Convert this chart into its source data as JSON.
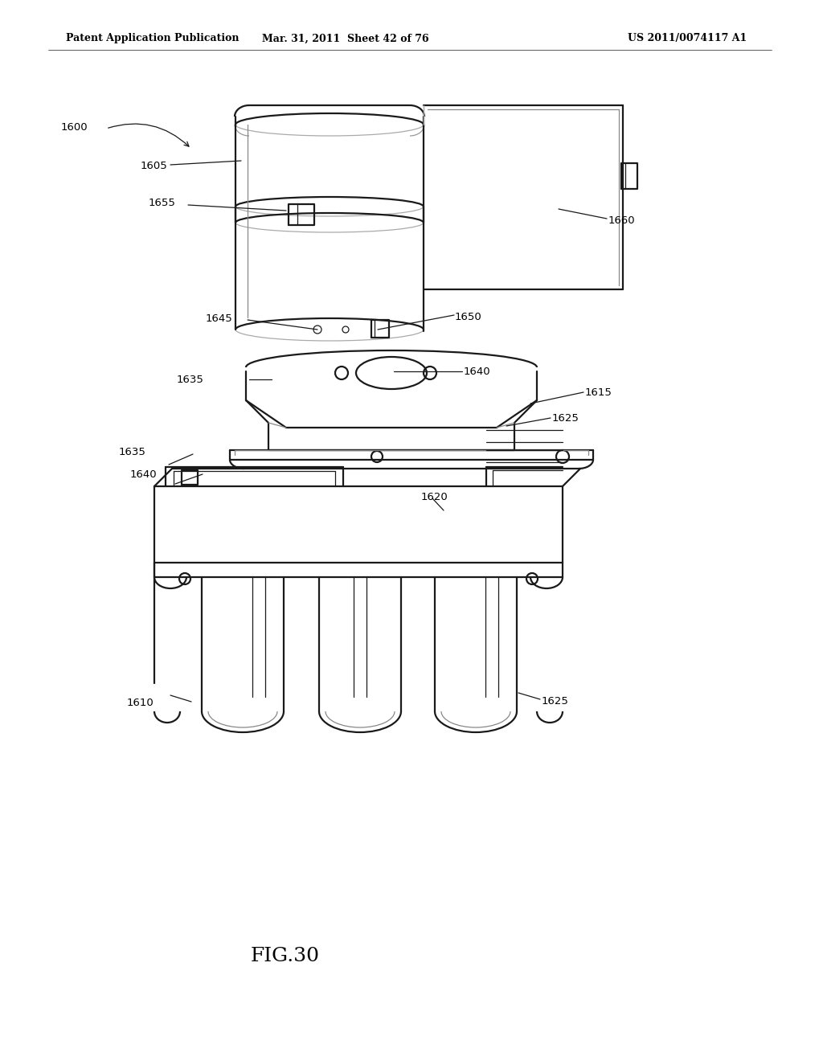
{
  "bg_color": "#ffffff",
  "lc": "#1a1a1a",
  "header_left": "Patent Application Publication",
  "header_mid": "Mar. 31, 2011  Sheet 42 of 76",
  "header_right": "US 2011/0074117 A1",
  "fig_label": "FIG.30",
  "figsize": [
    10.24,
    13.2
  ],
  "dpi": 100,
  "xlim": [
    0,
    1024
  ],
  "ylim": [
    0,
    1320
  ]
}
